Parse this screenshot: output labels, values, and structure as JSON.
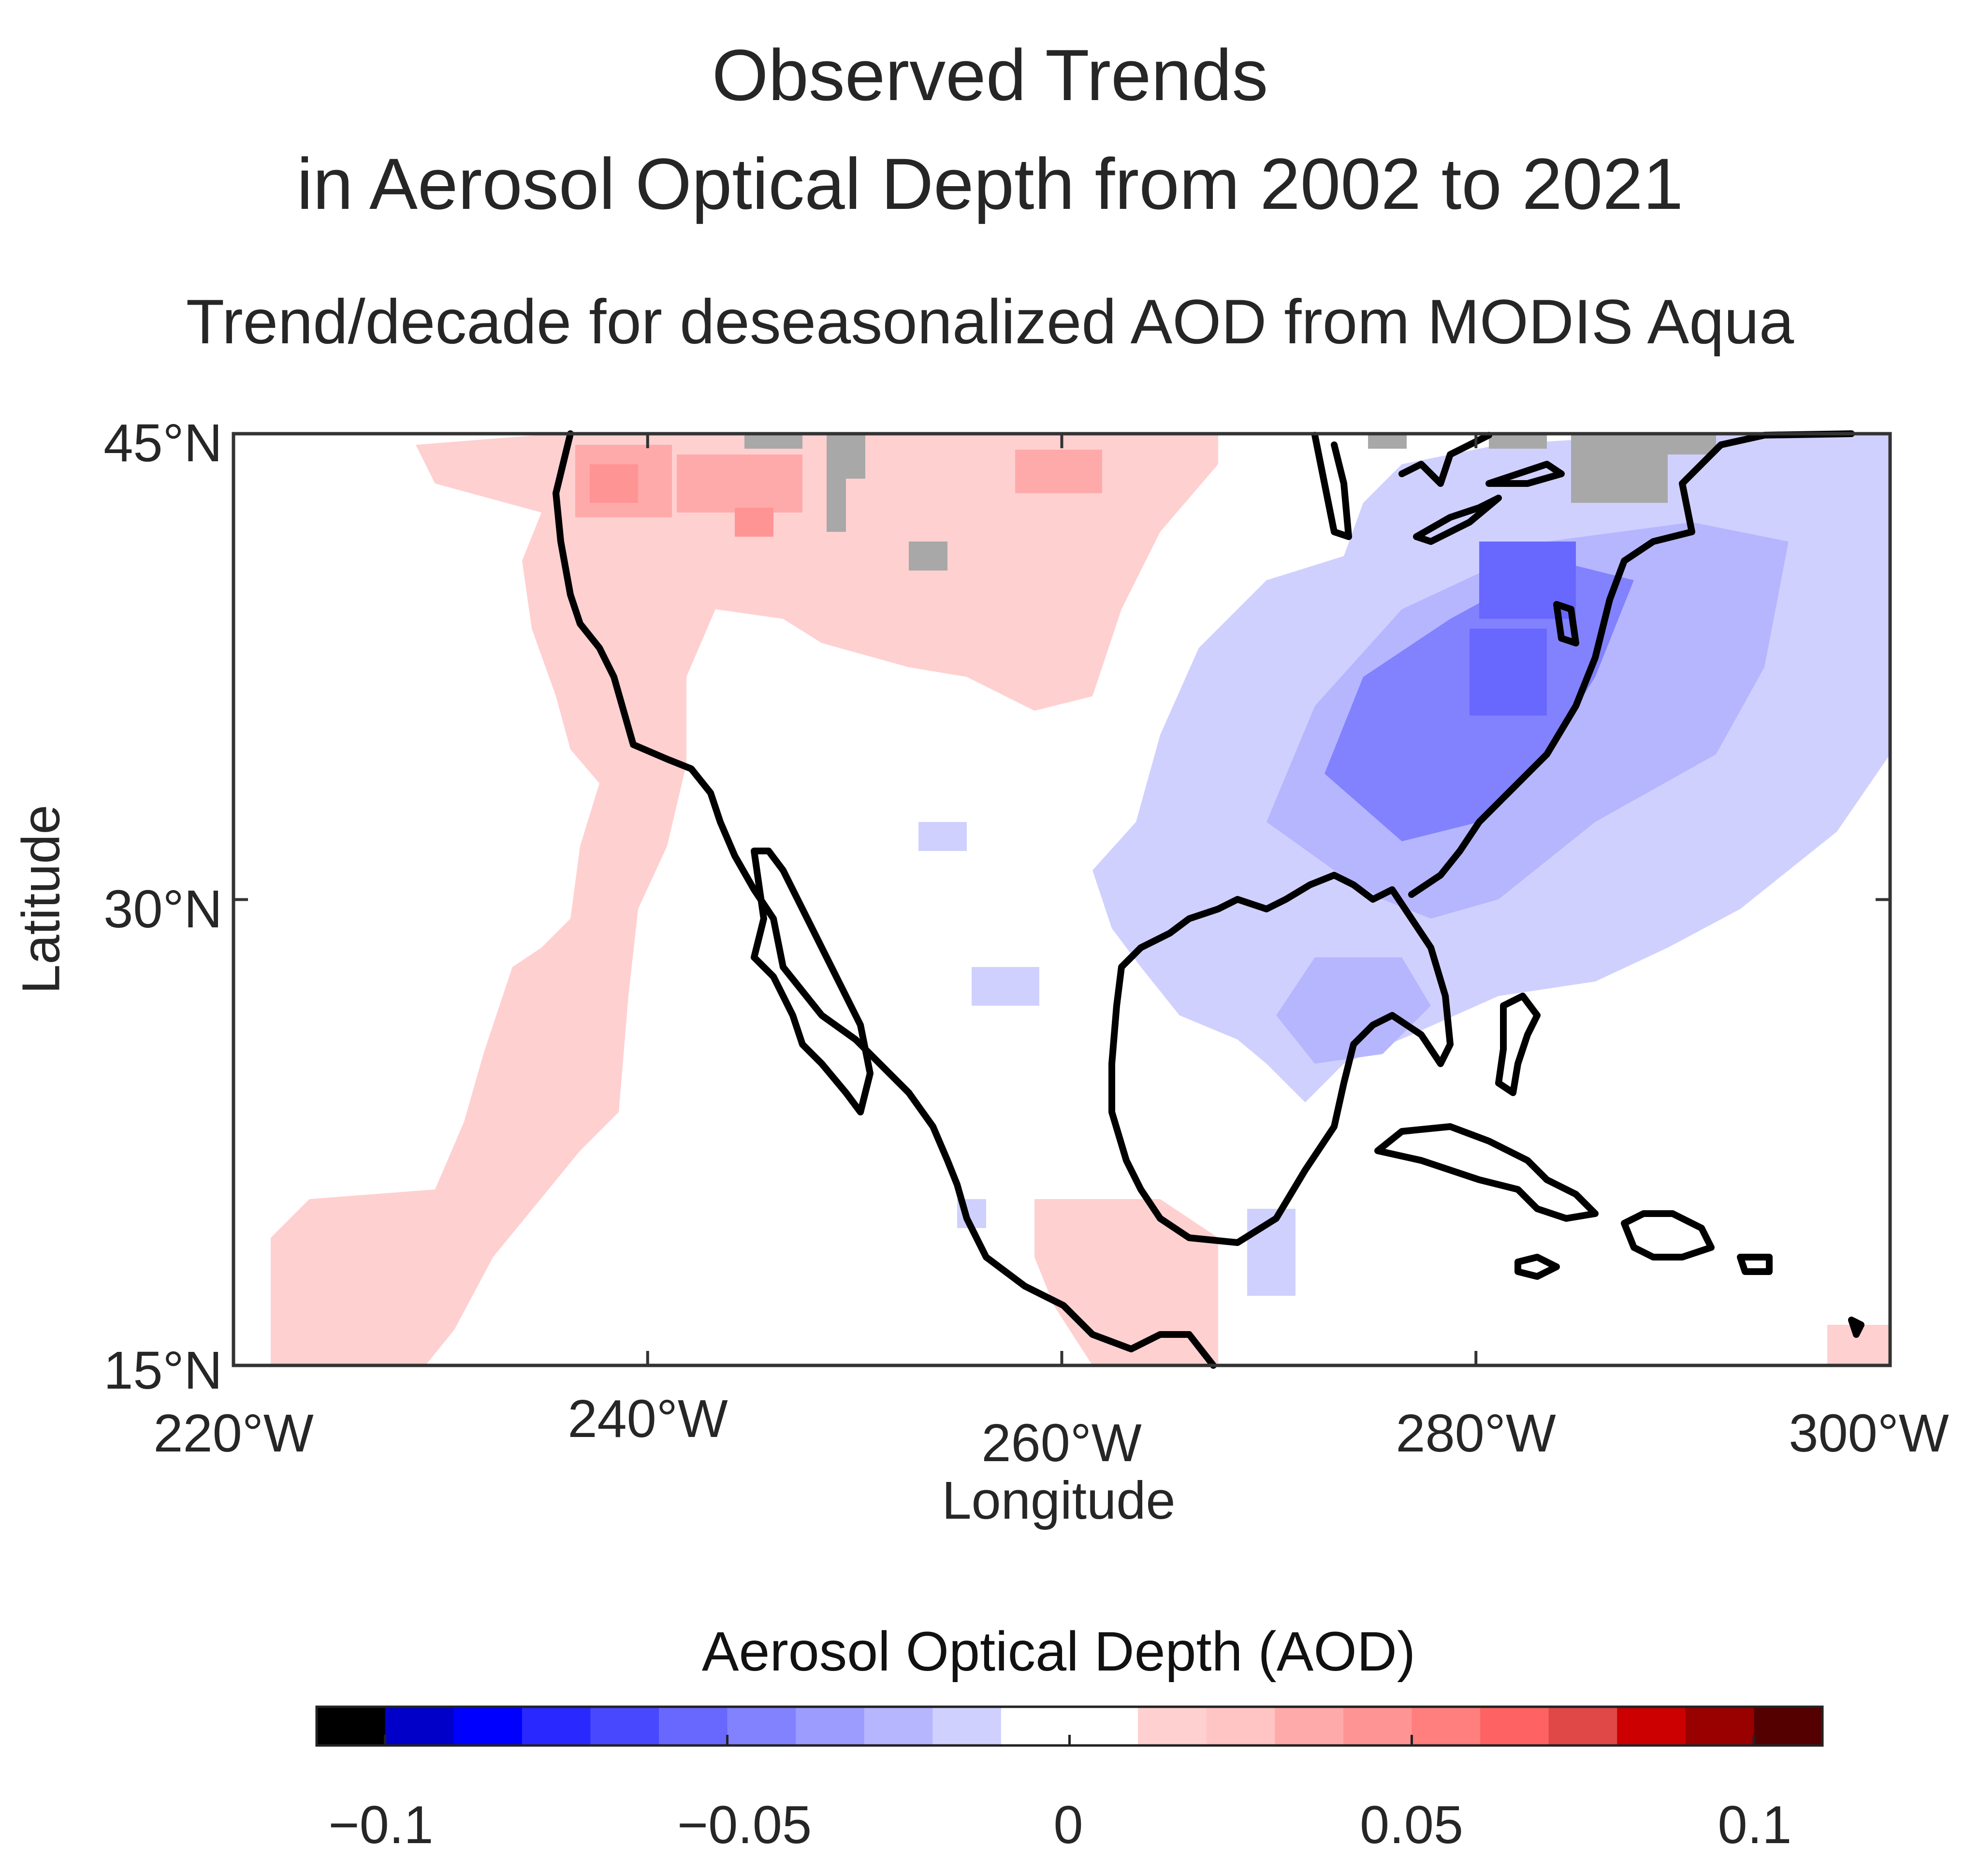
{
  "title_line1": "Observed Trends",
  "title_line2": "in Aerosol Optical Depth from 2002 to 2021",
  "subtitle": "Trend/decade for deseasonalized AOD from MODIS Aqua",
  "axes": {
    "xlabel": "Longitude",
    "ylabel": "Latitude",
    "xticks": [
      "220°W",
      "240°W",
      "260°W",
      "280°W",
      "300°W"
    ],
    "yticks": [
      "45°N",
      "30°N",
      "15°N"
    ],
    "xlim": [
      220,
      300
    ],
    "ylim": [
      15,
      45
    ]
  },
  "colorbar": {
    "title": "Aerosol Optical Depth (AOD)",
    "ticks": [
      "−0.1",
      "−0.05",
      "0",
      "0.05",
      "0.1"
    ],
    "colors": [
      "#000000",
      "#0000c8",
      "#0000ff",
      "#2828ff",
      "#4848ff",
      "#6868ff",
      "#8282ff",
      "#9c9cff",
      "#b6b6ff",
      "#d0d0ff",
      "#ffffff",
      "#ffffff",
      "#ffd0d0",
      "#ffc4c4",
      "#ffaaaa",
      "#ff9494",
      "#ff7e7e",
      "#ff6262",
      "#e04848",
      "#cc0000",
      "#990000",
      "#550000"
    ]
  },
  "regions": {
    "increase": "western US, northern Mexico and Pacific Ocean",
    "decrease": "eastern US, Gulf of Mexico and western Atlantic"
  },
  "missing_color": "#a8a8a8",
  "coastline_color": "#000000"
}
